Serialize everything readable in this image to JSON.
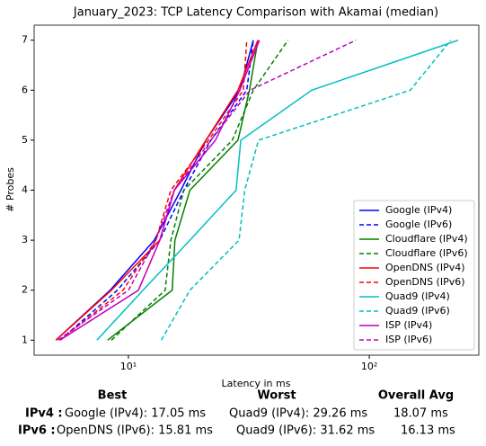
{
  "chart_data": {
    "type": "line",
    "title": "January_2023: TCP Latency Comparison with Akamai (median)",
    "xlabel": "Latency in ms",
    "ylabel": "# Probes",
    "xscale": "log",
    "xlim": [
      4.06,
      285
    ],
    "ylim": [
      0.7,
      7.3
    ],
    "xticks": [
      {
        "value": 10,
        "label": "10¹"
      },
      {
        "value": 100,
        "label": "10²"
      }
    ],
    "yticks": [
      1,
      2,
      3,
      4,
      5,
      6,
      7
    ],
    "legend": "lower right",
    "series": [
      {
        "name": "Google (IPv4)",
        "color": "#0000ff",
        "linestyle": "solid",
        "x": [
          5.0,
          8.4,
          12.8,
          16.5,
          21,
          29,
          33
        ],
        "values": [
          1,
          2,
          3,
          4,
          5,
          6,
          7
        ]
      },
      {
        "name": "Google (IPv6)",
        "color": "#0000ff",
        "linestyle": "dashed",
        "x": [
          5.2,
          9,
          13.5,
          17,
          22,
          31,
          33
        ],
        "values": [
          1,
          2,
          3,
          4,
          5,
          6,
          7
        ]
      },
      {
        "name": "Cloudflare (IPv4)",
        "color": "#008000",
        "linestyle": "solid",
        "x": [
          8.2,
          15.2,
          15.6,
          18,
          28.5,
          31.8,
          34.5
        ],
        "values": [
          1,
          2,
          3,
          4,
          5,
          6,
          7
        ]
      },
      {
        "name": "Cloudflare (IPv6)",
        "color": "#008000",
        "linestyle": "dashed",
        "x": [
          8.5,
          14.2,
          15,
          17,
          27,
          33,
          46
        ],
        "values": [
          1,
          2,
          3,
          4,
          5,
          6,
          7
        ]
      },
      {
        "name": "OpenDNS (IPv4)",
        "color": "#ff0000",
        "linestyle": "solid",
        "x": [
          5.0,
          8.5,
          13.5,
          15.5,
          21,
          28.5,
          34.5
        ],
        "values": [
          1,
          2,
          3,
          4,
          5,
          6,
          7
        ]
      },
      {
        "name": "OpenDNS (IPv6)",
        "color": "#ff0000",
        "linestyle": "dashed",
        "x": [
          5.2,
          9.5,
          13,
          15,
          21.5,
          30,
          31
        ],
        "values": [
          1,
          2,
          3,
          4,
          5,
          6,
          7
        ]
      },
      {
        "name": "Quad9 (IPv4)",
        "color": "#00bfbf",
        "linestyle": "solid",
        "x": [
          7.4,
          11.5,
          18,
          28,
          29.3,
          57.7,
          234
        ],
        "values": [
          1,
          2,
          3,
          4,
          5,
          6,
          7
        ]
      },
      {
        "name": "Quad9 (IPv6)",
        "color": "#00bfbf",
        "linestyle": "dashed",
        "x": [
          13.7,
          18,
          28.8,
          30.4,
          34.7,
          148,
          218
        ],
        "values": [
          1,
          2,
          3,
          4,
          5,
          6,
          7
        ]
      },
      {
        "name": "ISP (IPv4)",
        "color": "#bf00bf",
        "linestyle": "solid",
        "x": [
          5.2,
          11,
          13.5,
          15.5,
          23,
          29,
          35
        ],
        "values": [
          1,
          2,
          3,
          4,
          5,
          6,
          7
        ]
      },
      {
        "name": "ISP (IPv6)",
        "color": "#bf00bf",
        "linestyle": "dashed",
        "x": [
          5.1,
          10,
          13,
          15.5,
          22,
          32,
          88
        ],
        "values": [
          1,
          2,
          3,
          4,
          5,
          6,
          7
        ]
      }
    ]
  },
  "summary": {
    "headers": [
      "Best",
      "Worst",
      "Overall Avg"
    ],
    "rows": [
      [
        "IPv4 :",
        "Google (IPv4): 17.05 ms",
        "Quad9 (IPv4): 29.26 ms",
        "18.07 ms"
      ],
      [
        "IPv6 :",
        "OpenDNS (IPv6): 15.81 ms",
        "Quad9 (IPv6): 31.62 ms",
        "16.13 ms"
      ]
    ]
  }
}
